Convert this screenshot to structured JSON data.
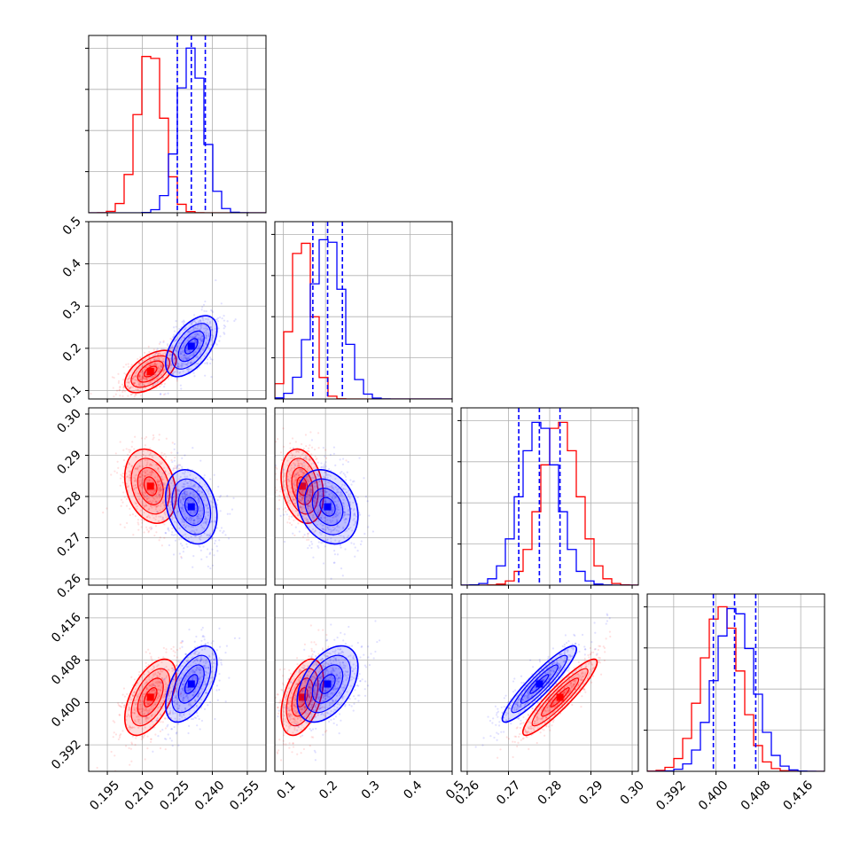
{
  "chart_data": {
    "type": "corner",
    "grid": true,
    "colors": {
      "series_a": "#ff0000",
      "series_b": "#0000ff",
      "quantile_line": "#0000ff",
      "grid": "#b0b0b0"
    },
    "parameters": [
      {
        "index": 0,
        "range": [
          0.187,
          0.263
        ],
        "ticks": [
          0.195,
          0.21,
          0.225,
          0.24,
          0.255
        ],
        "tick_labels": [
          "0.195",
          "0.210",
          "0.225",
          "0.240",
          "0.255"
        ]
      },
      {
        "index": 1,
        "range": [
          0.08,
          0.5
        ],
        "ticks": [
          0.1,
          0.2,
          0.3,
          0.4,
          0.5
        ],
        "tick_labels": [
          "0.1",
          "0.2",
          "0.3",
          "0.4",
          "0.5"
        ]
      },
      {
        "index": 2,
        "range": [
          0.2585,
          0.3015
        ],
        "ticks": [
          0.26,
          0.27,
          0.28,
          0.29,
          0.3
        ],
        "tick_labels": [
          "0.26",
          "0.27",
          "0.28",
          "0.29",
          "0.30"
        ]
      },
      {
        "index": 3,
        "range": [
          0.387,
          0.4205
        ],
        "ticks": [
          0.392,
          0.4,
          0.408,
          0.416
        ],
        "tick_labels": [
          "0.392",
          "0.400",
          "0.408",
          "0.416"
        ]
      }
    ],
    "series": [
      {
        "name": "",
        "color": "#ff0000",
        "mean": [
          0.2135,
          0.145,
          0.2825,
          0.401
        ],
        "std": [
          0.0055,
          0.025,
          0.0045,
          0.0036
        ]
      },
      {
        "name": "",
        "color": "#0000ff",
        "mean": [
          0.231,
          0.205,
          0.2775,
          0.4035
        ],
        "std": [
          0.0055,
          0.036,
          0.0045,
          0.0036
        ]
      }
    ],
    "correlations": [
      {
        "pair": [
          1,
          0
        ],
        "series_a": 0.55,
        "series_b": 0.55
      },
      {
        "pair": [
          2,
          0
        ],
        "series_a": -0.25,
        "series_b": -0.25
      },
      {
        "pair": [
          2,
          1
        ],
        "series_a": -0.25,
        "series_b": -0.25
      },
      {
        "pair": [
          3,
          0
        ],
        "series_a": 0.55,
        "series_b": 0.55
      },
      {
        "pair": [
          3,
          1
        ],
        "series_a": 0.45,
        "series_b": 0.45
      },
      {
        "pair": [
          3,
          2
        ],
        "series_a": 0.92,
        "series_b": 0.92
      }
    ],
    "quantile_lines": [
      [
        0.225,
        0.231,
        0.237
      ],
      [
        0.17,
        0.205,
        0.24
      ],
      [
        0.2725,
        0.2775,
        0.2825
      ],
      [
        0.3995,
        0.4035,
        0.4075
      ]
    ],
    "contour_levels_sigma": [
      0.5,
      1.0,
      1.5,
      2.0
    ]
  }
}
